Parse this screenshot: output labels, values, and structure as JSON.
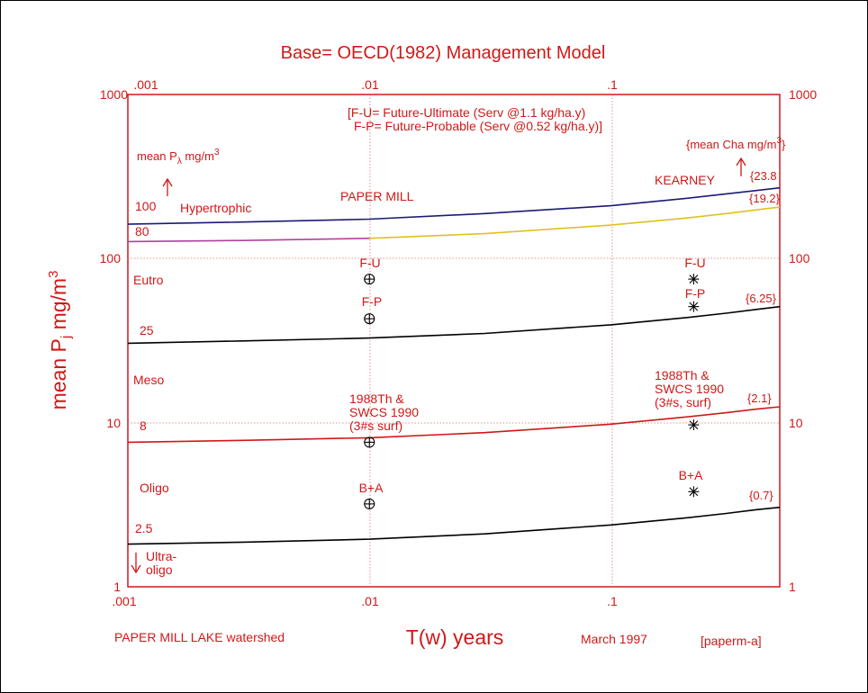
{
  "colors": {
    "text": "#d01818",
    "grid": "#e07070",
    "hyper_line": "#1a1a7a",
    "paper_mill_line": "#b040a0",
    "kearney_line": "#e0c020",
    "black": "#000000",
    "red_line": "#d01818"
  },
  "chart_data": {
    "type": "line",
    "title": "Base= OECD(1982) Management Model",
    "xlabel": "T(w) years",
    "ylabel": "mean P",
    "ylabel_sub": "j",
    "ylabel_unit": " mg/m",
    "ylabel_sup": "3",
    "xscale": "log",
    "yscale": "log",
    "xlim": [
      0.001,
      0.5
    ],
    "ylim": [
      1,
      1000
    ],
    "grid": true,
    "x_ticks_bottom": [
      {
        "value": 0.001,
        "label": ".001"
      },
      {
        "value": 0.01,
        "label": ".01"
      },
      {
        "value": 0.1,
        "label": ".1"
      }
    ],
    "x_ticks_top": [
      {
        "value": 0.001,
        "label": ".001"
      },
      {
        "value": 0.01,
        "label": ".01"
      },
      {
        "value": 0.1,
        "label": ".1"
      }
    ],
    "y_ticks_left": [
      {
        "value": 1,
        "label": "1"
      },
      {
        "value": 10,
        "label": "10"
      },
      {
        "value": 100,
        "label": "100"
      },
      {
        "value": 1000,
        "label": "1000"
      }
    ],
    "y_ticks_right": [
      {
        "value": 1,
        "label": "1"
      },
      {
        "value": 10,
        "label": "10"
      },
      {
        "value": 100,
        "label": "100"
      },
      {
        "value": 1000,
        "label": "1000"
      }
    ],
    "series": [
      {
        "color": "#1a1a7a",
        "x": [
          0.001,
          0.003,
          0.01,
          0.03,
          0.1,
          0.2,
          0.3,
          0.4,
          0.5
        ],
        "y": [
          162,
          167,
          174,
          188,
          210,
          232,
          248,
          260,
          270
        ]
      },
      {
        "color": "#b040a0",
        "x": [
          0.001,
          0.003,
          0.01
        ],
        "y": [
          127,
          129,
          133
        ]
      },
      {
        "color": "#e0c020",
        "x": [
          0.01,
          0.03,
          0.1,
          0.2,
          0.3,
          0.4,
          0.5
        ],
        "y": [
          133,
          142,
          160,
          176,
          188,
          198,
          206
        ]
      },
      {
        "color": "#000000",
        "x": [
          0.001,
          0.003,
          0.01,
          0.03,
          0.1,
          0.2,
          0.3,
          0.4,
          0.5
        ],
        "y": [
          30.5,
          31.5,
          32.8,
          35,
          39.5,
          43.5,
          46.5,
          49,
          51
        ]
      },
      {
        "color": "#d01818",
        "x": [
          0.001,
          0.003,
          0.01,
          0.03,
          0.1,
          0.2,
          0.3,
          0.4,
          0.5
        ],
        "y": [
          7.6,
          7.8,
          8.1,
          8.7,
          9.8,
          10.8,
          11.5,
          12.1,
          12.5
        ]
      },
      {
        "color": "#000000",
        "x": [
          0.001,
          0.003,
          0.01,
          0.03,
          0.1,
          0.2,
          0.3,
          0.4,
          0.5
        ],
        "y": [
          1.82,
          1.87,
          1.95,
          2.1,
          2.38,
          2.62,
          2.8,
          2.95,
          3.05
        ]
      }
    ],
    "points": [
      {
        "marker": "circle-plus",
        "x": 0.01,
        "y": 75
      },
      {
        "marker": "circle-plus",
        "x": 0.01,
        "y": 43
      },
      {
        "marker": "circle-plus",
        "x": 0.01,
        "y": 7.6
      },
      {
        "marker": "circle-plus",
        "x": 0.01,
        "y": 3.2
      },
      {
        "marker": "asterisk",
        "x": 0.22,
        "y": 75
      },
      {
        "marker": "asterisk",
        "x": 0.22,
        "y": 51
      },
      {
        "marker": "asterisk",
        "x": 0.22,
        "y": 9.7
      },
      {
        "marker": "asterisk",
        "x": 0.22,
        "y": 3.8
      }
    ]
  },
  "labels": {
    "legend_line1": "[F-U= Future-Ultimate (Serv @1.1 kg/ha.y)",
    "legend_line2": "F-P= Future-Probable (Serv @0.52 kg/ha.y)]",
    "mean_pl_prefix": "mean P",
    "mean_pl_sub": "λ",
    "mean_pl_unit": " mg/m",
    "mean_pl_sup": "3",
    "mean_cha_prefix": "{mean Cha mg/m",
    "mean_cha_sup": "3",
    "mean_cha_suffix": "}",
    "hypertrophic": "Hypertrophic",
    "eutro": "Eutro",
    "meso": "Meso",
    "oligo": "Oligo",
    "ultra_1": "Ultra-",
    "ultra_2": "oligo",
    "thr_100": "100",
    "thr_80": "80",
    "thr_25": "25",
    "thr_8": "8",
    "thr_2_5": "2.5",
    "paper_mill": "PAPER MILL",
    "kearney": "KEARNEY",
    "cha_23_8": "{23.8",
    "cha_19_2": "{19.2}",
    "cha_6_25": "{6.25}",
    "cha_2_1": "{2.1}",
    "cha_0_7": "{0.7}",
    "fu_left": "F-U",
    "fp_left": "F-P",
    "th_left_1": "1988Th &",
    "th_left_2": "SWCS 1990",
    "th_left_3": "(3#s surf)",
    "ba_left": "B+A",
    "fu_right": "F-U",
    "fp_right": "F-P",
    "th_right_1": "1988Th &",
    "th_right_2": "SWCS 1990",
    "th_right_3": "(3#s, surf)",
    "ba_right": "B+A",
    "footer_left": "PAPER MILL LAKE watershed",
    "footer_date": "March 1997",
    "footer_code": "[paperm-a]"
  }
}
